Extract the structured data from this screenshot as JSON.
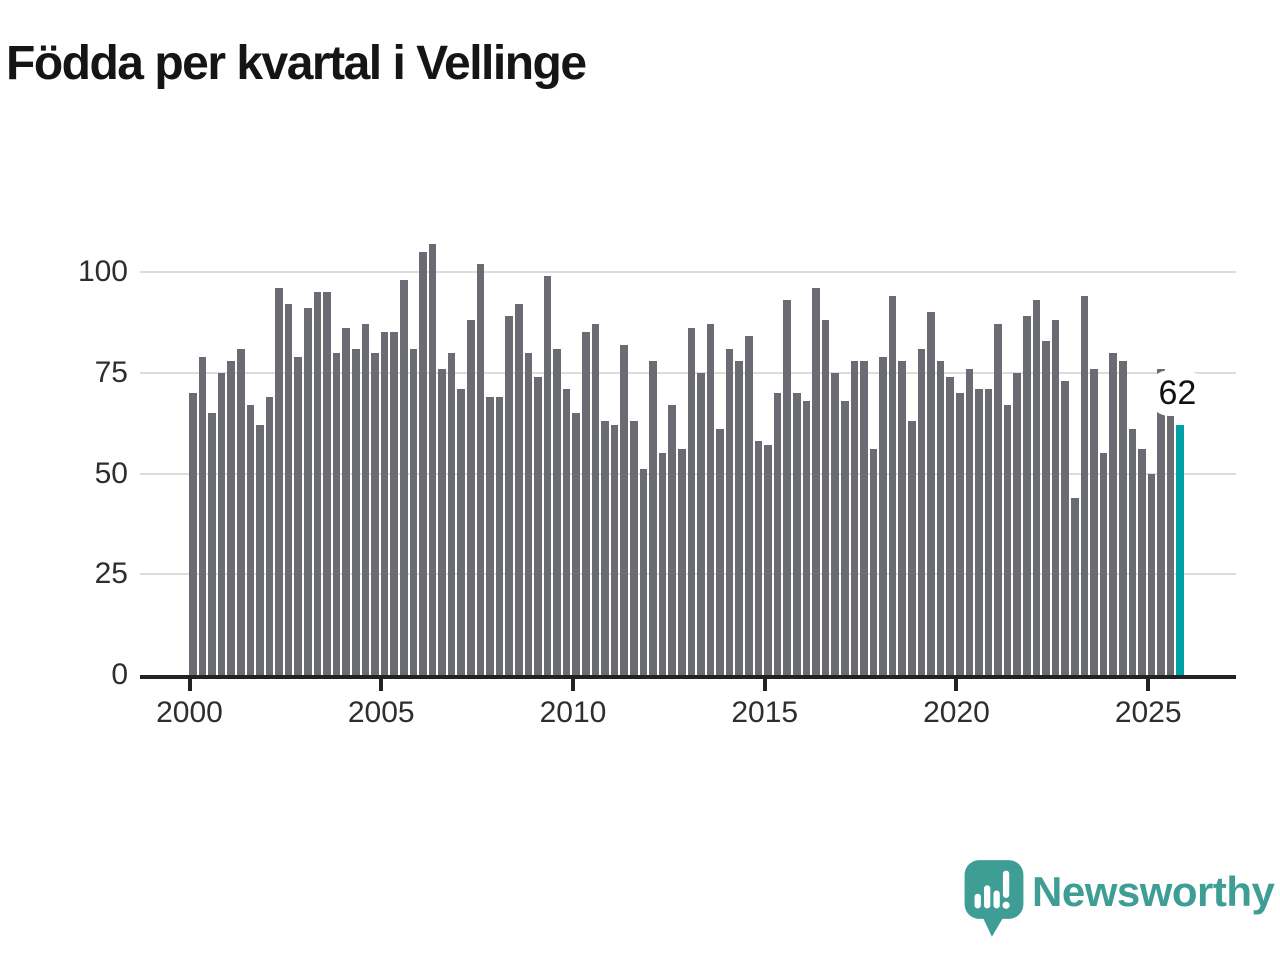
{
  "chart_data": {
    "type": "bar",
    "title": "Födda per kvartal i Vellinge",
    "categories": [
      "2000Q1",
      "2000Q2",
      "2000Q3",
      "2000Q4",
      "2001Q1",
      "2001Q2",
      "2001Q3",
      "2001Q4",
      "2002Q1",
      "2002Q2",
      "2002Q3",
      "2002Q4",
      "2003Q1",
      "2003Q2",
      "2003Q3",
      "2003Q4",
      "2004Q1",
      "2004Q2",
      "2004Q3",
      "2004Q4",
      "2005Q1",
      "2005Q2",
      "2005Q3",
      "2005Q4",
      "2006Q1",
      "2006Q2",
      "2006Q3",
      "2006Q4",
      "2007Q1",
      "2007Q2",
      "2007Q3",
      "2007Q4",
      "2008Q1",
      "2008Q2",
      "2008Q3",
      "2008Q4",
      "2009Q1",
      "2009Q2",
      "2009Q3",
      "2009Q4",
      "2010Q1",
      "2010Q2",
      "2010Q3",
      "2010Q4",
      "2011Q1",
      "2011Q2",
      "2011Q3",
      "2011Q4",
      "2012Q1",
      "2012Q2",
      "2012Q3",
      "2012Q4",
      "2013Q1",
      "2013Q2",
      "2013Q3",
      "2013Q4",
      "2014Q1",
      "2014Q2",
      "2014Q3",
      "2014Q4",
      "2015Q1",
      "2015Q2",
      "2015Q3",
      "2015Q4",
      "2016Q1",
      "2016Q2",
      "2016Q3",
      "2016Q4",
      "2017Q1",
      "2017Q2",
      "2017Q3",
      "2017Q4",
      "2018Q1",
      "2018Q2",
      "2018Q3",
      "2018Q4",
      "2019Q1",
      "2019Q2",
      "2019Q3",
      "2019Q4",
      "2020Q1",
      "2020Q2",
      "2020Q3",
      "2020Q4",
      "2021Q1",
      "2021Q2",
      "2021Q3",
      "2021Q4",
      "2022Q1",
      "2022Q2",
      "2022Q3",
      "2022Q4",
      "2023Q1",
      "2023Q2",
      "2023Q3",
      "2023Q4",
      "2024Q1",
      "2024Q2",
      "2024Q3",
      "2024Q4",
      "2025Q1",
      "2025Q2",
      "2025Q3",
      "2025Q4"
    ],
    "values": [
      70,
      79,
      65,
      75,
      78,
      81,
      67,
      62,
      69,
      96,
      92,
      79,
      91,
      95,
      95,
      80,
      86,
      81,
      87,
      80,
      85,
      85,
      98,
      81,
      105,
      107,
      76,
      80,
      71,
      88,
      102,
      69,
      69,
      89,
      92,
      80,
      74,
      99,
      81,
      71,
      65,
      85,
      87,
      63,
      62,
      82,
      63,
      51,
      78,
      55,
      67,
      56,
      86,
      75,
      87,
      61,
      81,
      78,
      84,
      58,
      57,
      70,
      93,
      70,
      68,
      96,
      88,
      75,
      68,
      78,
      78,
      56,
      79,
      94,
      78,
      63,
      81,
      90,
      78,
      74,
      70,
      76,
      71,
      71,
      87,
      67,
      75,
      89,
      93,
      83,
      88,
      73,
      44,
      94,
      76,
      55,
      80,
      78,
      61,
      56,
      50,
      76,
      65,
      62
    ],
    "highlight": {
      "index": 103,
      "label": "62",
      "color": "#00a0a8"
    },
    "bar_color": "#6b6b73",
    "grid_color": "#dcdcdc",
    "axis_color": "#222222",
    "ylim": [
      0,
      110
    ],
    "yticks": [
      0,
      25,
      50,
      75,
      100
    ],
    "xticks": [
      "2000",
      "2005",
      "2010",
      "2015",
      "2020",
      "2025"
    ],
    "grid": "horizontal",
    "legend": "none"
  },
  "branding": {
    "name": "Newsworthy",
    "icon": "newsworthy-speech-bubble-chart-icon",
    "color": "#3e9e95"
  }
}
